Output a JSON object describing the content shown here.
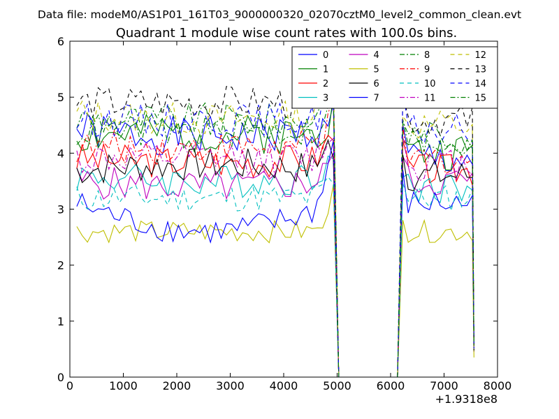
{
  "chart_data": {
    "type": "line",
    "header": "Data file: modeM0/AS1P01_161T03_9000000320_02070cztM0_level2_common_clean.evt",
    "title": "Quadrant 1 module wise count rates with 100.0s bins.",
    "xlabel": "",
    "ylabel": "",
    "x_offset_label": "+1.9318e8",
    "xlim": [
      0,
      8000
    ],
    "ylim": [
      0,
      6
    ],
    "xticks": [
      0,
      1000,
      2000,
      3000,
      4000,
      5000,
      6000,
      7000,
      8000
    ],
    "yticks": [
      0,
      1,
      2,
      3,
      4,
      5,
      6
    ],
    "x_start": 130,
    "x_step": 100,
    "gap_x": [
      5030,
      6130
    ],
    "segment1_end": 4930,
    "segment2_start": 6230,
    "segment2_end": 7530,
    "legend_position": "top-right",
    "series": [
      {
        "name": "0",
        "color": "#0000ff",
        "dash": "solid",
        "base1": 4.4,
        "amp": 0.35,
        "trend": -0.1,
        "seed": 1,
        "rise": 0.5,
        "base2": 3.9
      },
      {
        "name": "1",
        "color": "#008000",
        "dash": "solid",
        "base1": 4.3,
        "amp": 0.35,
        "trend": 0.05,
        "seed": 2,
        "rise": 0.7,
        "base2": 4.0
      },
      {
        "name": "2",
        "color": "#ff0000",
        "dash": "solid",
        "base1": 3.9,
        "amp": 0.3,
        "trend": -0.05,
        "seed": 3,
        "rise": 0.6,
        "base2": 3.7
      },
      {
        "name": "3",
        "color": "#00bfbf",
        "dash": "solid",
        "base1": 3.6,
        "amp": 0.3,
        "trend": -0.1,
        "seed": 4,
        "rise": 0.5,
        "base2": 3.4
      },
      {
        "name": "4",
        "color": "#bf00bf",
        "dash": "solid",
        "base1": 3.5,
        "amp": 0.3,
        "trend": -0.1,
        "seed": 5,
        "rise": 0.7,
        "base2": 3.5
      },
      {
        "name": "5",
        "color": "#bfbf00",
        "dash": "solid",
        "base1": 2.6,
        "amp": 0.2,
        "trend": 0.0,
        "seed": 6,
        "rise": 0.8,
        "base2": 2.6
      },
      {
        "name": "6",
        "color": "#000000",
        "dash": "solid",
        "base1": 3.7,
        "amp": 0.3,
        "trend": 0.1,
        "seed": 7,
        "rise": 0.6,
        "base2": 3.6
      },
      {
        "name": "7",
        "color": "#0000ff",
        "dash": "solid",
        "base1": 3.1,
        "amp": 0.25,
        "trend": -0.5,
        "seed": 8,
        "rise": 1.3,
        "base2": 3.1
      },
      {
        "name": "8",
        "color": "#008000",
        "dash": "dashdot",
        "base1": 4.6,
        "amp": 0.3,
        "trend": 0.0,
        "seed": 9,
        "rise": 0.6,
        "base2": 4.3
      },
      {
        "name": "9",
        "color": "#ff0000",
        "dash": "dashdot",
        "base1": 4.1,
        "amp": 0.3,
        "trend": 0.0,
        "seed": 10,
        "rise": 0.6,
        "base2": 3.9
      },
      {
        "name": "10",
        "color": "#00bfbf",
        "dash": "dashed",
        "base1": 3.2,
        "amp": 0.25,
        "trend": 0.0,
        "seed": 11,
        "rise": 0.5,
        "base2": 3.2
      },
      {
        "name": "11",
        "color": "#bf00bf",
        "dash": "dashdot",
        "base1": 3.9,
        "amp": 0.3,
        "trend": 0.0,
        "seed": 12,
        "rise": 0.6,
        "base2": 3.8
      },
      {
        "name": "12",
        "color": "#bfbf00",
        "dash": "dashed",
        "base1": 4.7,
        "amp": 0.3,
        "trend": -0.1,
        "seed": 13,
        "rise": 0.7,
        "base2": 4.5
      },
      {
        "name": "13",
        "color": "#000000",
        "dash": "dashed",
        "base1": 4.9,
        "amp": 0.3,
        "trend": 0.0,
        "seed": 14,
        "rise": 0.7,
        "base2": 4.6
      },
      {
        "name": "14",
        "color": "#0000ff",
        "dash": "dashed",
        "base1": 4.6,
        "amp": 0.3,
        "trend": 0.0,
        "seed": 15,
        "rise": 0.7,
        "base2": 4.4
      },
      {
        "name": "15",
        "color": "#008000",
        "dash": "dashdot",
        "base1": 4.4,
        "amp": 0.3,
        "trend": 0.0,
        "seed": 16,
        "rise": 0.7,
        "base2": 4.2
      }
    ]
  }
}
